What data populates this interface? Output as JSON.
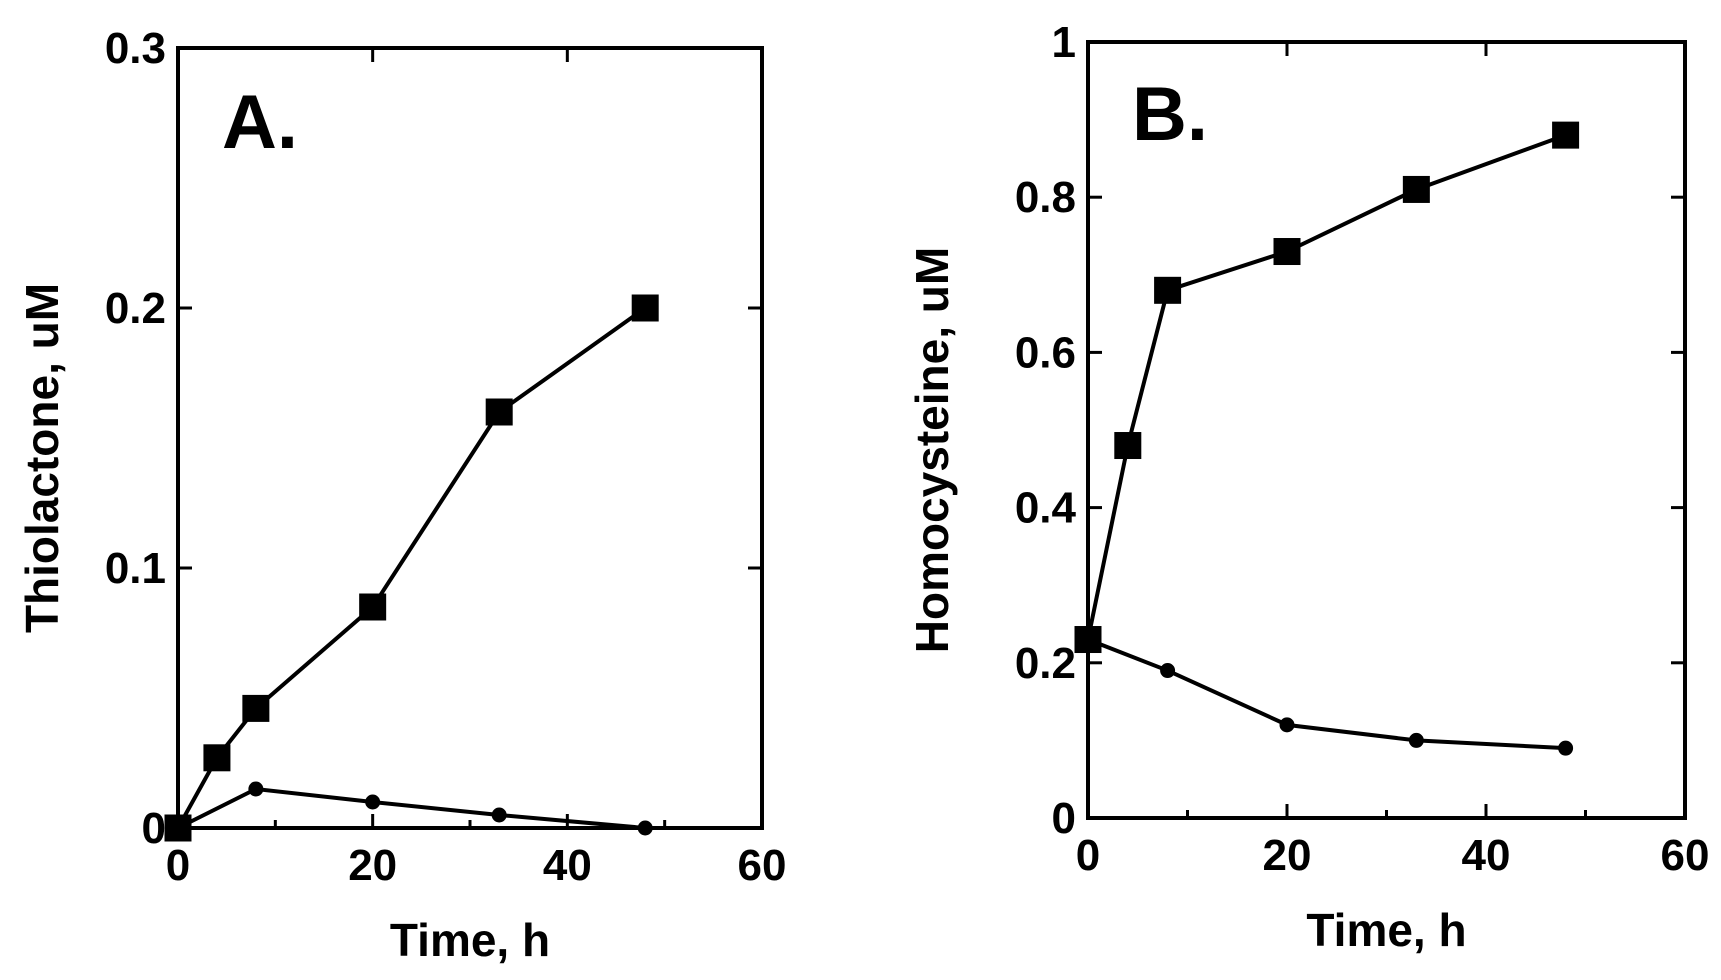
{
  "chart_data": [
    {
      "type": "line",
      "panel_label": "A.",
      "xlabel": "Time, h",
      "ylabel": "Thiolactone, uM",
      "xlim": [
        0,
        60
      ],
      "ylim": [
        0,
        0.3
      ],
      "xticks": [
        0,
        20,
        40,
        60
      ],
      "xtick_labels": [
        "0",
        "20",
        "40",
        "60"
      ],
      "yticks": [
        0,
        0.1,
        0.2,
        0.3
      ],
      "ytick_labels": [
        "0",
        "0.1",
        "0.2",
        "0.3"
      ],
      "grid": false,
      "series": [
        {
          "name": "squares",
          "marker": "square",
          "x": [
            0,
            4,
            8,
            20,
            33,
            48
          ],
          "values": [
            0,
            0.027,
            0.046,
            0.085,
            0.16,
            0.2
          ]
        },
        {
          "name": "circles",
          "marker": "circle",
          "x": [
            0,
            8,
            20,
            33,
            48
          ],
          "values": [
            0,
            0.015,
            0.01,
            0.005,
            0
          ]
        }
      ]
    },
    {
      "type": "line",
      "panel_label": "B.",
      "xlabel": "Time, h",
      "ylabel": "Homocysteine, uM",
      "xlim": [
        0,
        60
      ],
      "ylim": [
        0,
        1
      ],
      "xticks": [
        0,
        20,
        40,
        60
      ],
      "xtick_labels": [
        "0",
        "20",
        "40",
        "60"
      ],
      "yticks": [
        0,
        0.2,
        0.4,
        0.6,
        0.8,
        1
      ],
      "ytick_labels": [
        "0",
        "0.2",
        "0.4",
        "0.6",
        "0.8",
        "1"
      ],
      "grid": false,
      "series": [
        {
          "name": "squares",
          "marker": "square",
          "x": [
            0,
            4,
            8,
            20,
            33,
            48
          ],
          "values": [
            0.23,
            0.48,
            0.68,
            0.73,
            0.81,
            0.88
          ]
        },
        {
          "name": "circles",
          "marker": "circle",
          "x": [
            0,
            8,
            20,
            33,
            48
          ],
          "values": [
            0.23,
            0.19,
            0.12,
            0.1,
            0.09
          ]
        }
      ]
    }
  ]
}
